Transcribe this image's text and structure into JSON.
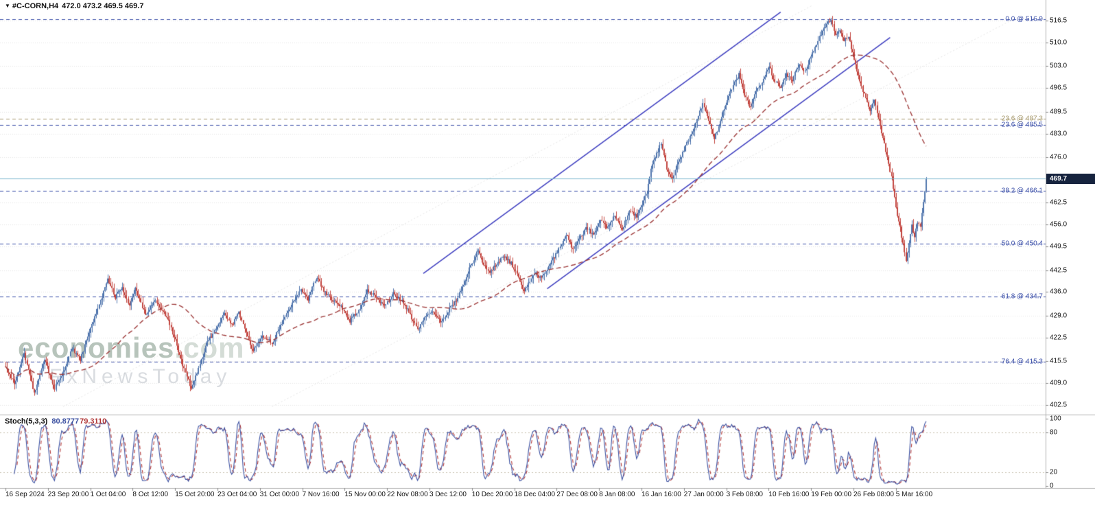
{
  "legend": {
    "marker": "▼",
    "symbol": "#C-CORN,H4",
    "ohlc": "472.0 473.2 469.5 469.7"
  },
  "watermark": {
    "brand": "economies",
    "domain": ".com",
    "subtitle": "FxNewsToday"
  },
  "stoch": {
    "label": "Stoch(5,3,3)",
    "value_k": "80.8777",
    "value_d": "79.3110",
    "levels": [
      80,
      20
    ],
    "axis_ticks": [
      {
        "label": "100",
        "value": 100
      },
      {
        "label": "80",
        "value": 80
      },
      {
        "label": "20",
        "value": 20
      },
      {
        "label": "0",
        "value": 0
      }
    ]
  },
  "price_axis": {
    "current_price": 469.7,
    "current_price_label": "469.7",
    "ticks": [
      {
        "label": "516.5",
        "value": 516.5
      },
      {
        "label": "510.0",
        "value": 510.0
      },
      {
        "label": "503.0",
        "value": 503.0
      },
      {
        "label": "496.5",
        "value": 496.5
      },
      {
        "label": "489.5",
        "value": 489.5
      },
      {
        "label": "483.0",
        "value": 483.0
      },
      {
        "label": "476.0",
        "value": 476.0
      },
      {
        "label": "462.5",
        "value": 462.5
      },
      {
        "label": "456.0",
        "value": 456.0
      },
      {
        "label": "449.5",
        "value": 449.5
      },
      {
        "label": "442.5",
        "value": 442.5
      },
      {
        "label": "436.0",
        "value": 436.0
      },
      {
        "label": "429.0",
        "value": 429.0
      },
      {
        "label": "422.5",
        "value": 422.5
      },
      {
        "label": "415.5",
        "value": 415.5
      },
      {
        "label": "409.0",
        "value": 409.0
      },
      {
        "label": "402.5",
        "value": 402.5
      }
    ]
  },
  "time_axis": {
    "labels": [
      "16 Sep 2024",
      "23 Sep 20:00",
      "1 Oct 04:00",
      "8 Oct 12:00",
      "15 Oct 20:00",
      "23 Oct 04:00",
      "31 Oct 00:00",
      "7 Nov 16:00",
      "15 Nov 00:00",
      "22 Nov 08:00",
      "3 Dec 12:00",
      "10 Dec 20:00",
      "18 Dec 04:00",
      "27 Dec 08:00",
      "8 Jan 08:00",
      "16 Jan 16:00",
      "27 Jan 00:00",
      "3 Feb 08:00",
      "10 Feb 16:00",
      "19 Feb 00:00",
      "26 Feb 08:00",
      "5 Mar 16:00"
    ]
  },
  "fib_levels": [
    {
      "label": "0.0 @ 516.9",
      "value": 516.9,
      "style": "primary"
    },
    {
      "label": "23.6 @ 487.3",
      "value": 487.3,
      "style": "secondary"
    },
    {
      "label": "23.6 @ 485.5",
      "value": 485.5,
      "style": "primary"
    },
    {
      "label": "38.2 @ 466.1",
      "value": 466.1,
      "style": "primary"
    },
    {
      "label": "50.0 @ 450.4",
      "value": 450.4,
      "style": "primary"
    },
    {
      "label": "61.8 @ 434.7",
      "value": 434.7,
      "style": "primary"
    },
    {
      "label": "76.4 @ 415.3",
      "value": 415.3,
      "style": "primary"
    }
  ],
  "chart_data": {
    "type": "candlestick",
    "symbol": "#C-CORN",
    "timeframe": "H4",
    "title": "#C-CORN,H4 472.0 473.2 469.5 469.7",
    "current_ohlc": {
      "open": 472.0,
      "high": 473.2,
      "low": 469.5,
      "close": 469.7
    },
    "y_axis_range": [
      399.5,
      522.6
    ],
    "grid": "horizontal-dotted",
    "legend_position": "top-left",
    "candle_count": 640,
    "seed": 20240916,
    "noise": 1.1,
    "wick": 1.6,
    "moving_average": {
      "period": 60,
      "style": "dashed"
    },
    "stochastic": {
      "period": 5,
      "slowing": 3,
      "d_period": 3,
      "range": [
        0,
        100
      ],
      "current_k": 80.8777,
      "current_d": 79.311
    },
    "price_anchors": [
      [
        0,
        413.5
      ],
      [
        6,
        409.0
      ],
      [
        13,
        417.5
      ],
      [
        20,
        405.8
      ],
      [
        27,
        416.0
      ],
      [
        34,
        407.5
      ],
      [
        40,
        412.0
      ],
      [
        46,
        419.5
      ],
      [
        52,
        416.0
      ],
      [
        58,
        424.0
      ],
      [
        63,
        429.5
      ],
      [
        68,
        436.0
      ],
      [
        71,
        440.0
      ],
      [
        76,
        434.5
      ],
      [
        81,
        437.5
      ],
      [
        86,
        432.0
      ],
      [
        90,
        437.0
      ],
      [
        97,
        429.5
      ],
      [
        104,
        433.5
      ],
      [
        112,
        428.5
      ],
      [
        118,
        421.5
      ],
      [
        124,
        413.0
      ],
      [
        129,
        407.5
      ],
      [
        134,
        413.5
      ],
      [
        140,
        421.0
      ],
      [
        147,
        425.5
      ],
      [
        152,
        429.5
      ],
      [
        157,
        426.0
      ],
      [
        162,
        430.0
      ],
      [
        167,
        424.0
      ],
      [
        172,
        418.5
      ],
      [
        178,
        423.0
      ],
      [
        185,
        421.0
      ],
      [
        192,
        427.0
      ],
      [
        199,
        432.5
      ],
      [
        205,
        437.0
      ],
      [
        210,
        434.0
      ],
      [
        216,
        440.5
      ],
      [
        221,
        436.5
      ],
      [
        227,
        433.5
      ],
      [
        233,
        432.0
      ],
      [
        239,
        427.5
      ],
      [
        245,
        430.5
      ],
      [
        251,
        436.5
      ],
      [
        257,
        434.5
      ],
      [
        263,
        431.5
      ],
      [
        269,
        435.5
      ],
      [
        275,
        433.5
      ],
      [
        280,
        430.0
      ],
      [
        286,
        424.5
      ],
      [
        292,
        429.0
      ],
      [
        297,
        430.5
      ],
      [
        302,
        427.0
      ],
      [
        308,
        431.0
      ],
      [
        313,
        433.5
      ],
      [
        318,
        438.5
      ],
      [
        323,
        444.0
      ],
      [
        328,
        448.5
      ],
      [
        332,
        444.0
      ],
      [
        336,
        441.5
      ],
      [
        341,
        444.5
      ],
      [
        346,
        446.5
      ],
      [
        351,
        444.5
      ],
      [
        356,
        440.5
      ],
      [
        360,
        436.0
      ],
      [
        364,
        439.5
      ],
      [
        368,
        441.5
      ],
      [
        372,
        440.0
      ],
      [
        377,
        443.5
      ],
      [
        381,
        446.5
      ],
      [
        385,
        449.5
      ],
      [
        390,
        453.0
      ],
      [
        394,
        448.5
      ],
      [
        398,
        451.5
      ],
      [
        403,
        455.0
      ],
      [
        408,
        453.0
      ],
      [
        413,
        457.0
      ],
      [
        418,
        455.0
      ],
      [
        423,
        459.0
      ],
      [
        428,
        454.5
      ],
      [
        433,
        460.0
      ],
      [
        438,
        458.5
      ],
      [
        442,
        461.5
      ],
      [
        445,
        465.5
      ],
      [
        448,
        473.0
      ],
      [
        452,
        477.0
      ],
      [
        455,
        480.0
      ],
      [
        459,
        472.5
      ],
      [
        463,
        469.5
      ],
      [
        467,
        475.0
      ],
      [
        471,
        478.0
      ],
      [
        476,
        483.0
      ],
      [
        480,
        487.5
      ],
      [
        484,
        491.5
      ],
      [
        488,
        486.5
      ],
      [
        492,
        481.5
      ],
      [
        496,
        486.5
      ],
      [
        500,
        492.0
      ],
      [
        505,
        497.5
      ],
      [
        509,
        500.5
      ],
      [
        513,
        494.5
      ],
      [
        517,
        490.5
      ],
      [
        521,
        495.5
      ],
      [
        526,
        499.0
      ],
      [
        530,
        503.0
      ],
      [
        534,
        498.5
      ],
      [
        538,
        497.0
      ],
      [
        542,
        500.5
      ],
      [
        546,
        499.0
      ],
      [
        551,
        503.5
      ],
      [
        555,
        501.5
      ],
      [
        558,
        505.0
      ],
      [
        562,
        508.5
      ],
      [
        566,
        512.5
      ],
      [
        570,
        515.5
      ],
      [
        573,
        516.3
      ],
      [
        576,
        512.5
      ],
      [
        579,
        514.0
      ],
      [
        582,
        510.5
      ],
      [
        585,
        511.5
      ],
      [
        588,
        507.0
      ],
      [
        591,
        501.5
      ],
      [
        594,
        497.0
      ],
      [
        597,
        493.5
      ],
      [
        600,
        489.5
      ],
      [
        603,
        493.0
      ],
      [
        606,
        487.0
      ],
      [
        609,
        481.5
      ],
      [
        612,
        476.0
      ],
      [
        615,
        470.0
      ],
      [
        617,
        464.0
      ],
      [
        619,
        459.0
      ],
      [
        621,
        455.0
      ],
      [
        623,
        450.0
      ],
      [
        625,
        445.5
      ],
      [
        627,
        451.0
      ],
      [
        629,
        455.5
      ],
      [
        631,
        452.5
      ],
      [
        633,
        457.0
      ],
      [
        635,
        455.0
      ],
      [
        636,
        459.5
      ],
      [
        637,
        462.5
      ],
      [
        638,
        466.0
      ],
      [
        639,
        469.7
      ]
    ],
    "trend_channel": [
      {
        "from": [
          290,
          441.5
        ],
        "to": [
          538,
          519.0
        ]
      },
      {
        "from": [
          376,
          437.0
        ],
        "to": [
          614,
          511.5
        ]
      }
    ],
    "guide_lines": [
      {
        "from": [
          40,
          402.0
        ],
        "to": [
          560,
          521.0
        ]
      },
      {
        "from": [
          185,
          402.0
        ],
        "to": [
          700,
          517.0
        ]
      }
    ],
    "colors": {
      "candle_up": "#4f74ad",
      "candle_down": "#c2453f",
      "ma": "#9e3a3a",
      "channel": "#3f3fc0",
      "fib_primary": "#3b4fa8",
      "fib_secondary": "#a89b70",
      "current_line": "#7fb9cf",
      "tag_bg": "#16233e",
      "tag_text": "#ffffff",
      "grid": "#e4e4e4",
      "separator": "#b0b0b0",
      "axis_text": "#111111",
      "stoch_k": "#3a4fa0",
      "stoch_d": "#b03535",
      "stoch_level": "#c8c0ae",
      "watermark_brand": "#b7c4bb",
      "watermark_domain": "#d4dcd6",
      "watermark_subtitle": "#d9dce0"
    }
  }
}
